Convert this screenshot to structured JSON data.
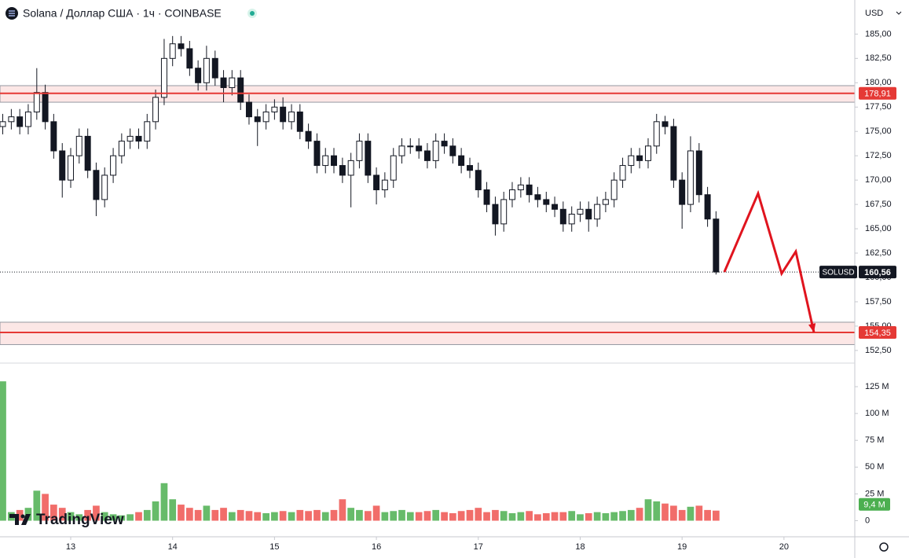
{
  "chart_data": {
    "type": "candlestick",
    "title": "Solana / Доллар США · 1ч · COINBASE",
    "currency": "USD",
    "symbol": "SOLUSD",
    "brand": "TradingView",
    "xlim": [
      12.306,
      20.695
    ],
    "xticks": [
      13,
      14,
      15,
      16,
      17,
      18,
      19,
      20
    ],
    "ylim": [
      151.2,
      188.5
    ],
    "yticks": [
      {
        "value": 152.5,
        "label": "152,50"
      },
      {
        "value": 155,
        "label": "155,00"
      },
      {
        "value": 157.5,
        "label": "157,50"
      },
      {
        "value": 160,
        "label": "160,00"
      },
      {
        "value": 162.5,
        "label": "162,50"
      },
      {
        "value": 165,
        "label": "165,00"
      },
      {
        "value": 167.5,
        "label": "167,50"
      },
      {
        "value": 170,
        "label": "170,00"
      },
      {
        "value": 172.5,
        "label": "172,50"
      },
      {
        "value": 175,
        "label": "175,00"
      },
      {
        "value": 177.5,
        "label": "177,50"
      },
      {
        "value": 180,
        "label": "180,00"
      },
      {
        "value": 182.5,
        "label": "182,50"
      },
      {
        "value": 185,
        "label": "185,00"
      }
    ],
    "grid": false,
    "candle_color": "#131722",
    "x": [
      12.333,
      12.417,
      12.5,
      12.583,
      12.667,
      12.75,
      12.833,
      12.917,
      13,
      13.083,
      13.167,
      13.25,
      13.333,
      13.417,
      13.5,
      13.583,
      13.667,
      13.75,
      13.833,
      13.917,
      14,
      14.083,
      14.167,
      14.25,
      14.333,
      14.417,
      14.5,
      14.583,
      14.667,
      14.75,
      14.833,
      14.917,
      15,
      15.083,
      15.167,
      15.25,
      15.333,
      15.417,
      15.5,
      15.583,
      15.667,
      15.75,
      15.833,
      15.917,
      16,
      16.083,
      16.167,
      16.25,
      16.333,
      16.417,
      16.5,
      16.583,
      16.667,
      16.75,
      16.833,
      16.917,
      17,
      17.083,
      17.167,
      17.25,
      17.333,
      17.417,
      17.5,
      17.583,
      17.667,
      17.75,
      17.833,
      17.917,
      18,
      18.083,
      18.167,
      18.25,
      18.333,
      18.417,
      18.5,
      18.583,
      18.667,
      18.75,
      18.833,
      18.917,
      19,
      19.083,
      19.167,
      19.25,
      19.333
    ],
    "open": [
      175.5,
      176,
      176.5,
      175.5,
      177,
      179,
      176,
      173,
      170,
      172.5,
      174.5,
      171,
      168,
      170.5,
      172.5,
      174,
      174.5,
      174,
      176,
      178.5,
      182.5,
      184,
      183.5,
      181.5,
      180,
      182.5,
      180.5,
      179.5,
      180.5,
      178,
      176.5,
      176,
      177,
      177.5,
      176,
      177,
      175,
      174,
      171.5,
      172.5,
      171.5,
      170.5,
      172,
      174,
      170.5,
      169,
      170,
      172.5,
      173.5,
      173.5,
      173,
      172,
      174,
      173.5,
      172.5,
      171.5,
      171,
      169,
      167.5,
      165.5,
      168,
      169,
      169.5,
      168.5,
      168,
      167.5,
      167,
      165.5,
      166.5,
      167,
      166,
      167.5,
      168,
      170,
      171.5,
      172.5,
      172,
      173.5,
      176,
      175.5,
      170,
      167.5,
      173,
      168.5,
      166
    ],
    "high": [
      176.8,
      177.3,
      177.3,
      177.8,
      181.5,
      179.8,
      176.8,
      173.8,
      173.3,
      175.3,
      175.3,
      171.8,
      171.3,
      173.3,
      174.8,
      175.3,
      175.3,
      176.8,
      179.3,
      184.5,
      184.8,
      184.8,
      184.3,
      182.3,
      183.8,
      183.3,
      181.3,
      181.3,
      181.3,
      178.8,
      177.3,
      177.8,
      178.3,
      178.5,
      177.8,
      177.8,
      175.8,
      174.8,
      173.3,
      173.3,
      172.3,
      172.8,
      174.8,
      174.8,
      171.3,
      170.8,
      173.3,
      174.3,
      174.3,
      174.3,
      173.8,
      174.8,
      174.8,
      174.3,
      173.3,
      172.3,
      171.8,
      169.8,
      168.3,
      168.8,
      169.8,
      170.3,
      170.3,
      169.3,
      168.8,
      168.3,
      167.8,
      167.3,
      167.8,
      167.8,
      168.3,
      168.8,
      170.8,
      172.3,
      173.3,
      173.3,
      174.3,
      176.8,
      176.6,
      176.3,
      170.8,
      174.5,
      173.8,
      169.3,
      166.8
    ],
    "low": [
      174.7,
      175.2,
      174.7,
      174.7,
      176.2,
      175.2,
      172.2,
      168.2,
      169.2,
      171.7,
      170.2,
      166.3,
      167.2,
      169.7,
      171.7,
      173.2,
      173.2,
      173.2,
      175.2,
      177.7,
      181.7,
      182.7,
      180.7,
      179.2,
      179.2,
      179.7,
      178,
      178.7,
      177.2,
      175.7,
      173.5,
      175.2,
      176.2,
      175.2,
      175.2,
      174.2,
      173.2,
      170.7,
      170.7,
      170.7,
      169.7,
      167.2,
      171.2,
      169.7,
      167.5,
      168.2,
      169.2,
      171.7,
      172.7,
      172.2,
      171.2,
      171.2,
      172.7,
      171.7,
      170.7,
      170.2,
      168.2,
      166.7,
      164.3,
      164.7,
      167.2,
      168.2,
      167.7,
      167.2,
      166.7,
      166.2,
      164.7,
      164.7,
      165.7,
      164.7,
      165.2,
      166.7,
      167.2,
      169.2,
      170.7,
      171.2,
      171.2,
      172.7,
      174.7,
      169.2,
      165,
      166.7,
      167.7,
      165.2,
      160.3
    ],
    "close": [
      176,
      176.5,
      175.5,
      177,
      179,
      176,
      173,
      170,
      172.5,
      174.5,
      171,
      168,
      170.5,
      172.5,
      174,
      174.5,
      174,
      176,
      178.5,
      182.5,
      184,
      183.5,
      181.5,
      180,
      182.5,
      180.5,
      179.5,
      180.5,
      178,
      176.5,
      176,
      177,
      177.5,
      176,
      177,
      175,
      174,
      171.5,
      172.5,
      171.5,
      170.5,
      172,
      174,
      170.5,
      169,
      170,
      172.5,
      173.5,
      173.5,
      173,
      172,
      174,
      173.5,
      172.5,
      171.5,
      171,
      169,
      167.5,
      165.5,
      168,
      169,
      169.5,
      168.5,
      168,
      167.5,
      167,
      165.5,
      166.5,
      167,
      166,
      167.5,
      168,
      170,
      171.5,
      172.5,
      172,
      173.5,
      176,
      175.5,
      170,
      167.5,
      173,
      168.5,
      166,
      160.56
    ],
    "price_line": {
      "value": 160.56,
      "label": "160,56"
    },
    "levels": [
      {
        "value": 178.91,
        "label": "178,91",
        "band": [
          178.0,
          179.7
        ]
      },
      {
        "value": 154.35,
        "label": "154,35",
        "band": [
          153.1,
          155.4
        ]
      }
    ],
    "level_color": "#e53935",
    "projection": {
      "x": [
        19.415,
        19.746,
        19.977,
        20.116,
        20.294
      ],
      "y": [
        160.56,
        168.63,
        160.4,
        162.66,
        154.35
      ],
      "color": "#e0141e"
    },
    "volume": {
      "values": [
        130,
        8,
        10,
        12,
        28,
        25,
        15,
        12,
        8,
        6,
        10,
        14,
        8,
        6,
        5,
        6,
        8,
        10,
        18,
        35,
        20,
        15,
        12,
        10,
        14,
        10,
        12,
        8,
        10,
        9,
        8,
        7,
        8,
        9,
        8,
        10,
        9,
        10,
        8,
        10,
        20,
        12,
        10,
        9,
        14,
        8,
        9,
        10,
        8,
        8,
        9,
        10,
        8,
        7,
        9,
        10,
        12,
        8,
        10,
        9,
        7,
        8,
        9,
        6,
        7,
        8,
        8,
        9,
        6,
        7,
        8,
        7,
        8,
        9,
        10,
        12,
        20,
        18,
        16,
        14,
        10,
        13,
        14,
        10,
        9.4
      ],
      "up_color": "#4caf50",
      "down_color": "#ef5350",
      "ylim": [
        -15,
        147
      ],
      "yticks": [
        0,
        {
          "value": 25,
          "label": "25 M"
        },
        {
          "value": 50,
          "label": "50 M"
        },
        {
          "value": 75,
          "label": "75 M"
        },
        {
          "value": 100,
          "label": "100 M"
        },
        {
          "value": 125,
          "label": "125 M"
        }
      ],
      "last": {
        "value": 9.4,
        "label": "9,4 M"
      }
    }
  }
}
